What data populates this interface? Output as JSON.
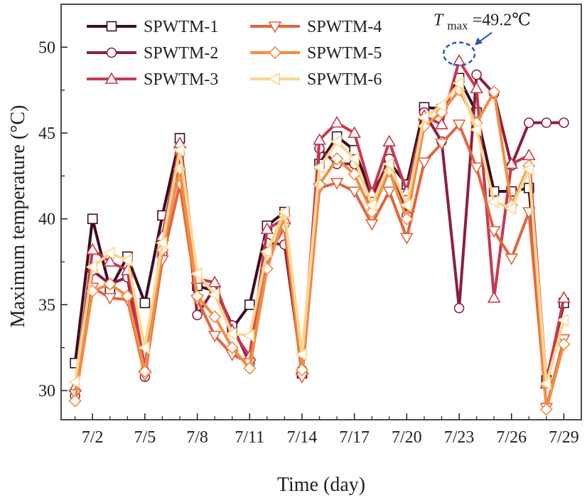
{
  "chart_data": {
    "type": "line",
    "xlabel": "Time (day)",
    "ylabel": "Maximum temperature (°C)",
    "x": [
      1,
      2,
      3,
      4,
      5,
      6,
      7,
      8,
      9,
      10,
      11,
      12,
      13,
      14,
      15,
      16,
      17,
      18,
      19,
      20,
      21,
      22,
      23,
      24,
      25,
      26,
      27,
      28,
      29
    ],
    "xlim": [
      0.2,
      30.0
    ],
    "ylim": [
      28.3,
      52.5
    ],
    "xticks": [
      2,
      5,
      8,
      11,
      14,
      17,
      20,
      23,
      26,
      29
    ],
    "xtick_labels": [
      "7/2",
      "7/5",
      "7/8",
      "7/11",
      "7/14",
      "7/17",
      "7/20",
      "7/23",
      "7/26",
      "7/29"
    ],
    "yticks": [
      30,
      35,
      40,
      45,
      50
    ],
    "ytick_labels": [
      "30",
      "35",
      "40",
      "45",
      "50"
    ],
    "legend_position": "top-left",
    "series": [
      {
        "name": "SPWTM-1",
        "color": "#3b0f1e",
        "marker": "square",
        "values": [
          31.6,
          40.0,
          35.9,
          37.8,
          35.1,
          40.2,
          44.7,
          36.1,
          35.8,
          33.6,
          35.0,
          39.6,
          40.4,
          31.0,
          43.2,
          44.8,
          44.0,
          41.4,
          43.3,
          42.0,
          46.5,
          46.4,
          48.2,
          46.2,
          41.6,
          41.6,
          41.8,
          30.6,
          35.1
        ]
      },
      {
        "name": "SPWTM-2",
        "color": "#8c1e3e",
        "marker": "circle",
        "values": [
          29.7,
          37.0,
          36.2,
          36.6,
          30.8,
          38.0,
          43.8,
          34.4,
          36.0,
          33.8,
          31.6,
          38.6,
          38.5,
          31.2,
          44.1,
          43.2,
          43.2,
          41.2,
          43.5,
          40.2,
          46.2,
          44.5,
          34.8,
          48.4,
          47.3,
          43.1,
          45.6,
          45.6,
          45.6
        ]
      },
      {
        "name": "SPWTM-3",
        "color": "#c8384f",
        "marker": "triangle-up",
        "values": [
          30.2,
          38.2,
          37.5,
          37.0,
          31.3,
          39.0,
          44.4,
          36.5,
          36.3,
          33.5,
          32.0,
          39.4,
          40.0,
          31.2,
          44.6,
          45.6,
          45.0,
          41.5,
          44.5,
          41.6,
          46.0,
          45.5,
          49.2,
          47.6,
          35.4,
          43.2,
          43.7,
          30.4,
          35.4
        ]
      },
      {
        "name": "SPWTM-4",
        "color": "#e4643e",
        "marker": "triangle-down",
        "values": [
          29.8,
          36.0,
          35.4,
          35.3,
          30.9,
          37.6,
          42.0,
          35.3,
          33.2,
          32.1,
          31.6,
          37.8,
          39.5,
          30.8,
          41.8,
          42.1,
          41.6,
          39.7,
          41.6,
          38.9,
          43.3,
          44.4,
          45.5,
          43.0,
          39.3,
          37.7,
          40.4,
          29.0,
          33.0
        ]
      },
      {
        "name": "SPWTM-5",
        "color": "#f28e44",
        "marker": "diamond",
        "values": [
          29.4,
          35.8,
          36.2,
          35.5,
          31.1,
          38.2,
          42.9,
          35.5,
          34.3,
          32.5,
          31.3,
          37.1,
          40.2,
          31.2,
          42.0,
          43.5,
          42.6,
          40.4,
          42.8,
          40.0,
          45.4,
          46.2,
          47.5,
          45.6,
          47.4,
          40.8,
          43.1,
          28.9,
          32.7
        ]
      },
      {
        "name": "SPWTM-6",
        "color": "#fbd690",
        "marker": "triangle-left",
        "values": [
          30.5,
          37.2,
          38.0,
          37.6,
          32.5,
          38.6,
          44.0,
          36.8,
          35.6,
          33.3,
          33.2,
          38.1,
          40.4,
          32.1,
          43.0,
          44.5,
          43.5,
          40.8,
          43.2,
          40.8,
          45.9,
          46.6,
          47.9,
          45.2,
          41.0,
          40.6,
          42.9,
          30.4,
          34.1
        ]
      }
    ],
    "annotation": {
      "prefix": "T",
      "subscript": "max",
      "suffix": "=49.2℃",
      "x": 23,
      "y": 49.2
    }
  }
}
